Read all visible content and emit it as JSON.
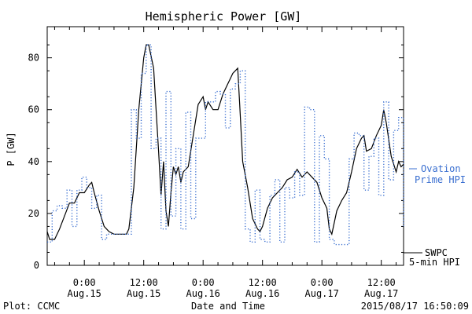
{
  "chart_data": {
    "type": "line",
    "title": "Hemispheric Power [GW]",
    "ylabel": "P [GW]",
    "xlabel": "Date and Time",
    "ylim": [
      0,
      92
    ],
    "yticks": [
      0,
      20,
      40,
      60,
      80
    ],
    "xticks": [
      {
        "x": 0,
        "line1": "0:00",
        "line2": "Aug.15"
      },
      {
        "x": 12,
        "line1": "12:00",
        "line2": "Aug.15"
      },
      {
        "x": 24,
        "line1": "0:00",
        "line2": "Aug.16"
      },
      {
        "x": 36,
        "line1": "12:00",
        "line2": "Aug.16"
      },
      {
        "x": 48,
        "line1": "0:00",
        "line2": "Aug.17"
      },
      {
        "x": 60,
        "line1": "12:00",
        "line2": "Aug.17"
      }
    ],
    "xlim": [
      -7.5,
      64.5
    ],
    "x_unit": "hours from 2015-08-15 00:00",
    "grid": false,
    "series": [
      {
        "name": "SWPC 5-min HPI",
        "style": "solid",
        "color": "#000000",
        "points": [
          [
            -7.5,
            13
          ],
          [
            -7,
            10
          ],
          [
            -6,
            10
          ],
          [
            -5,
            14
          ],
          [
            -4,
            19
          ],
          [
            -3,
            24
          ],
          [
            -2,
            24
          ],
          [
            -1,
            28
          ],
          [
            0,
            28
          ],
          [
            1,
            31
          ],
          [
            1.5,
            32
          ],
          [
            2,
            28
          ],
          [
            3,
            21
          ],
          [
            4,
            15
          ],
          [
            5,
            13
          ],
          [
            6,
            12
          ],
          [
            7,
            12
          ],
          [
            8,
            12
          ],
          [
            8.5,
            12
          ],
          [
            9,
            14
          ],
          [
            10,
            30
          ],
          [
            11,
            60
          ],
          [
            12,
            80
          ],
          [
            12.5,
            85
          ],
          [
            13,
            85
          ],
          [
            14,
            76
          ],
          [
            14.5,
            60
          ],
          [
            15,
            44
          ],
          [
            15.5,
            27
          ],
          [
            16,
            40
          ],
          [
            16.5,
            21
          ],
          [
            17,
            15
          ],
          [
            17.5,
            28
          ],
          [
            18,
            38
          ],
          [
            18.5,
            35
          ],
          [
            19,
            38
          ],
          [
            19.5,
            32
          ],
          [
            20,
            36
          ],
          [
            21,
            38
          ],
          [
            22,
            50
          ],
          [
            23,
            62
          ],
          [
            24,
            65
          ],
          [
            24.5,
            60
          ],
          [
            25,
            63
          ],
          [
            26,
            60
          ],
          [
            27,
            60
          ],
          [
            28,
            66
          ],
          [
            29,
            70
          ],
          [
            29.5,
            72
          ],
          [
            30,
            74
          ],
          [
            31,
            76
          ],
          [
            31.5,
            58
          ],
          [
            32,
            40
          ],
          [
            33,
            30
          ],
          [
            34,
            18
          ],
          [
            35,
            14
          ],
          [
            35.5,
            13
          ],
          [
            36,
            15
          ],
          [
            37,
            22
          ],
          [
            38,
            26
          ],
          [
            39,
            28
          ],
          [
            40,
            30
          ],
          [
            41,
            33
          ],
          [
            42,
            34
          ],
          [
            43,
            37
          ],
          [
            44,
            34
          ],
          [
            45,
            36
          ],
          [
            46,
            34
          ],
          [
            47,
            32
          ],
          [
            48,
            26
          ],
          [
            49,
            22
          ],
          [
            49.5,
            14
          ],
          [
            50,
            12
          ],
          [
            51,
            21
          ],
          [
            52,
            25
          ],
          [
            53,
            28
          ],
          [
            54,
            36
          ],
          [
            55,
            45
          ],
          [
            56,
            49
          ],
          [
            56.5,
            50
          ],
          [
            57,
            44
          ],
          [
            58,
            45
          ],
          [
            59,
            50
          ],
          [
            60,
            54
          ],
          [
            60.5,
            60
          ],
          [
            61,
            55
          ],
          [
            62,
            42
          ],
          [
            63,
            36
          ],
          [
            63.5,
            40
          ],
          [
            64,
            38
          ],
          [
            64.5,
            39
          ]
        ]
      },
      {
        "name": "Ovation Prime HPI",
        "style": "dotted",
        "color": "#3a6fd0",
        "steps": [
          [
            -7.5,
            9
          ],
          [
            -6.5,
            21
          ],
          [
            -5.5,
            23
          ],
          [
            -4.5,
            22
          ],
          [
            -3.5,
            29
          ],
          [
            -2.5,
            15
          ],
          [
            -1.5,
            29
          ],
          [
            -0.5,
            34
          ],
          [
            0.5,
            30
          ],
          [
            1.5,
            22
          ],
          [
            2.5,
            27
          ],
          [
            3.5,
            10
          ],
          [
            4.5,
            12
          ],
          [
            5.5,
            12
          ],
          [
            6.5,
            12
          ],
          [
            7.5,
            12
          ],
          [
            8.5,
            12
          ],
          [
            9.5,
            60
          ],
          [
            10.5,
            49
          ],
          [
            11.5,
            74
          ],
          [
            12.5,
            85
          ],
          [
            13.5,
            45
          ],
          [
            14.5,
            49
          ],
          [
            15.5,
            14
          ],
          [
            16.5,
            67
          ],
          [
            17.5,
            19
          ],
          [
            18.5,
            45
          ],
          [
            19.5,
            14
          ],
          [
            20.5,
            59
          ],
          [
            21.5,
            18
          ],
          [
            22.5,
            49
          ],
          [
            23.5,
            49
          ],
          [
            24.5,
            63
          ],
          [
            25.5,
            63
          ],
          [
            26.5,
            67
          ],
          [
            27.5,
            66
          ],
          [
            28.5,
            53
          ],
          [
            29.5,
            68
          ],
          [
            30.5,
            70
          ],
          [
            31.5,
            75
          ],
          [
            32.5,
            14
          ],
          [
            33.5,
            9
          ],
          [
            34.5,
            29
          ],
          [
            35.5,
            10
          ],
          [
            36.5,
            9
          ],
          [
            37.5,
            27
          ],
          [
            38.5,
            33
          ],
          [
            39.5,
            9
          ],
          [
            40.5,
            30
          ],
          [
            41.5,
            26
          ],
          [
            42.5,
            36
          ],
          [
            43.5,
            27
          ],
          [
            44.5,
            61
          ],
          [
            45.5,
            60
          ],
          [
            46.5,
            9
          ],
          [
            47.5,
            50
          ],
          [
            48.5,
            41
          ],
          [
            49.5,
            10
          ],
          [
            50.5,
            8
          ],
          [
            51.5,
            8
          ],
          [
            52.5,
            8
          ],
          [
            53.5,
            41
          ],
          [
            54.5,
            51
          ],
          [
            55.5,
            50
          ],
          [
            56.5,
            29
          ],
          [
            57.5,
            42
          ],
          [
            58.5,
            49
          ],
          [
            59.5,
            27
          ],
          [
            60.5,
            63
          ],
          [
            61.5,
            33
          ],
          [
            62.5,
            52
          ],
          [
            63.5,
            57
          ],
          [
            64.5,
            15
          ]
        ]
      }
    ],
    "legend": {
      "blue_line1": "Ovation",
      "blue_line2": "Prime HPI",
      "black_line1": "SWPC",
      "black_line2": "5-min HPI"
    },
    "footer_left": "Plot: CCMC",
    "footer_right": "2015/08/17 16:50:09"
  }
}
